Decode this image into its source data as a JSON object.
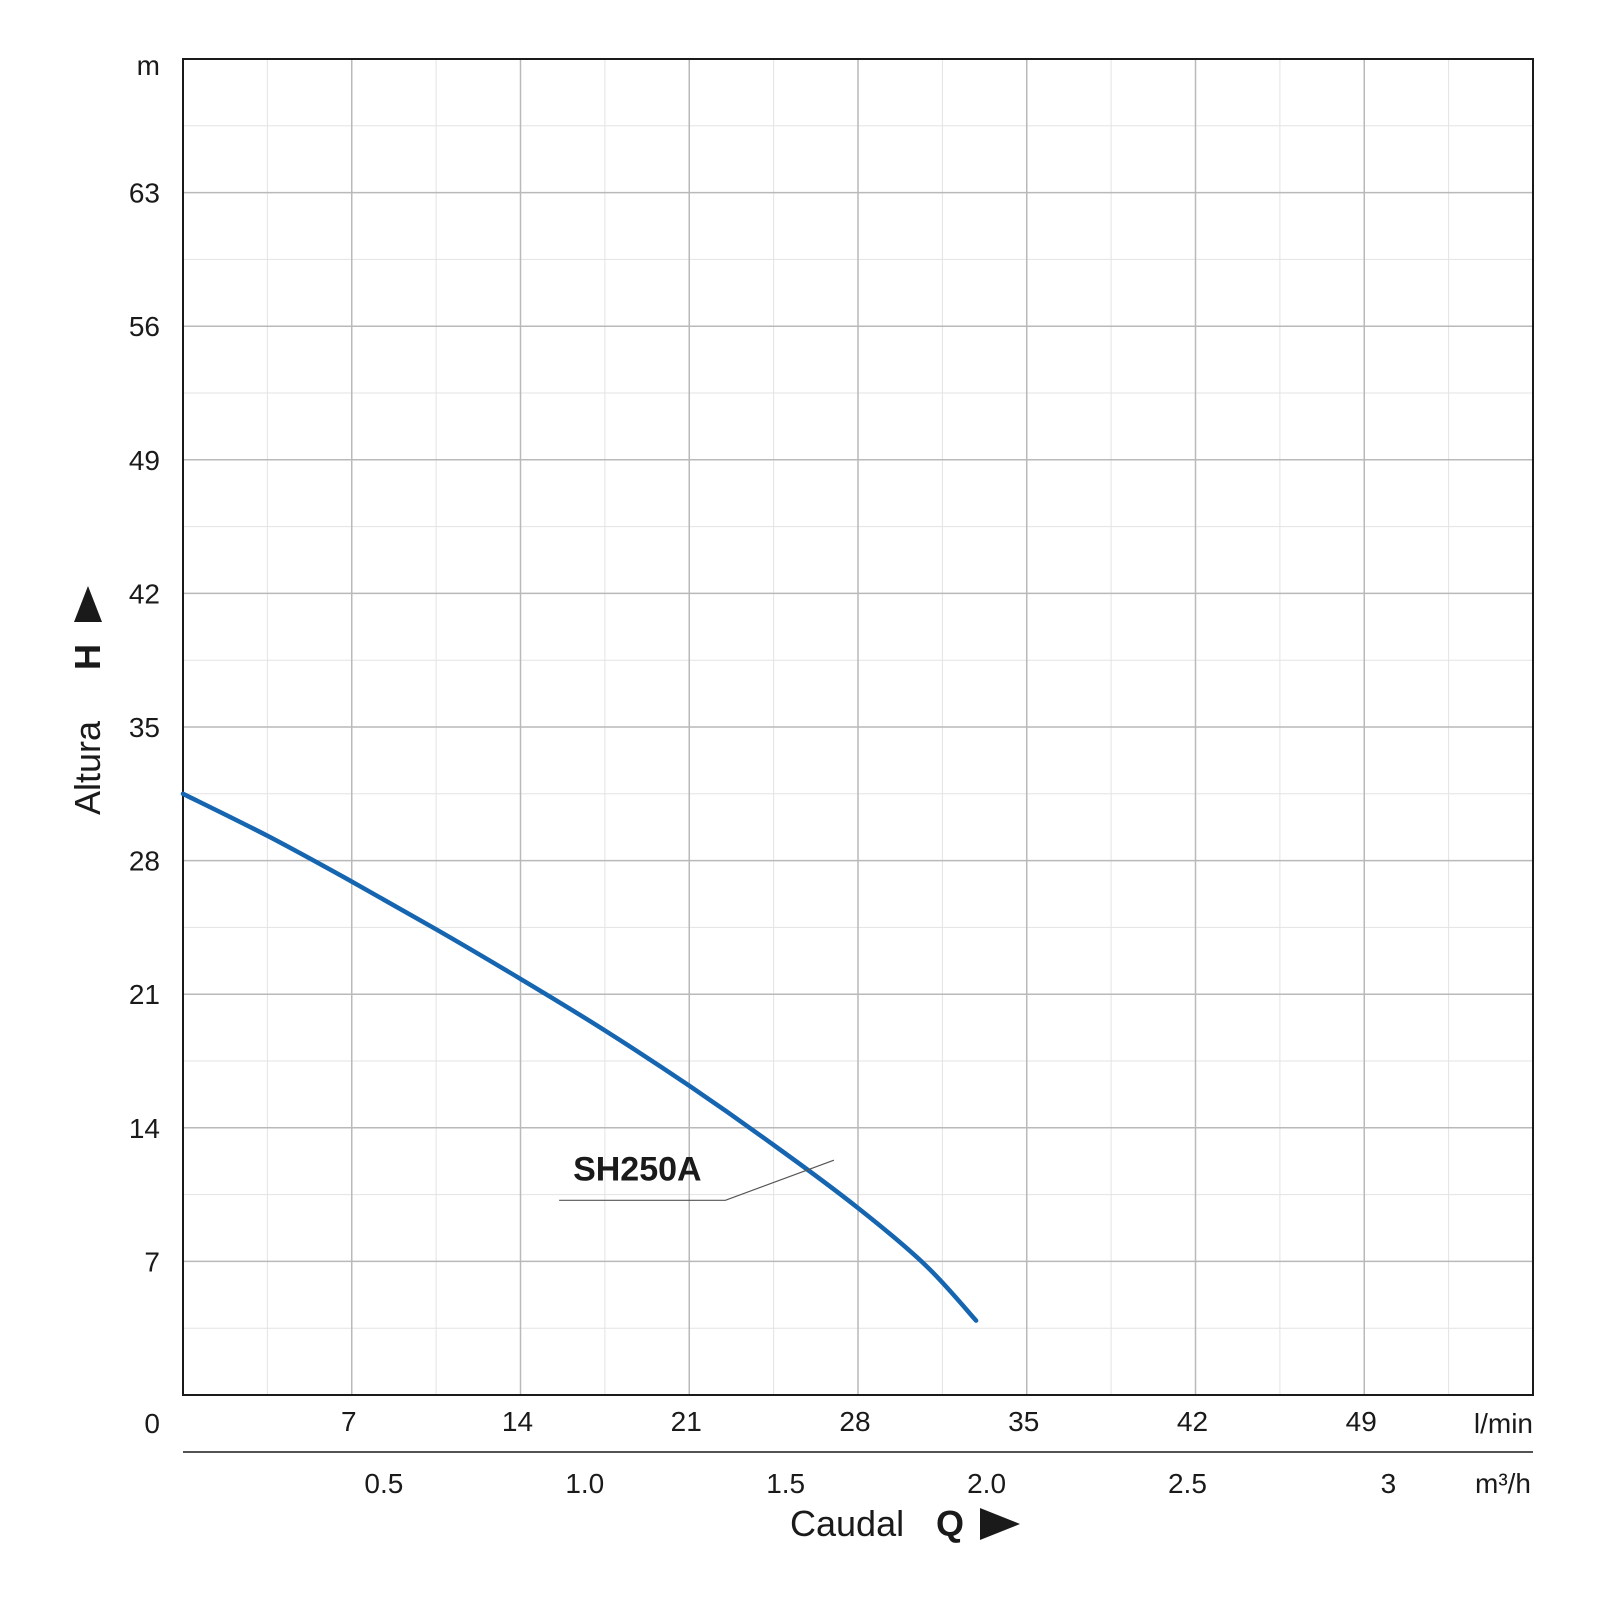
{
  "chart_data": {
    "type": "line",
    "y_axis": {
      "title": "Altura",
      "symbol": "H",
      "unit": "m",
      "ticks": [
        0,
        7,
        14,
        21,
        28,
        35,
        42,
        49,
        56,
        63
      ],
      "tick_labels": [
        "0",
        "7",
        "14",
        "21",
        "28",
        "35",
        "42",
        "49",
        "56",
        "63"
      ],
      "range": [
        0,
        70
      ]
    },
    "x_axis": {
      "title": "Caudal",
      "symbol": "Q",
      "unit_primary": "l/min",
      "range": [
        0,
        56
      ],
      "ticks_primary": [
        7,
        14,
        21,
        28,
        35,
        42,
        49
      ],
      "tick_labels_primary": [
        "7",
        "14",
        "21",
        "28",
        "35",
        "42",
        "49"
      ],
      "unit_secondary": "m³/h",
      "ticks_secondary": [
        0.5,
        1.0,
        1.5,
        2.0,
        2.5,
        3
      ],
      "tick_labels_secondary": [
        "0.5",
        "1.0",
        "1.5",
        "2.0",
        "2.5",
        "3"
      ]
    },
    "grid": true,
    "series": [
      {
        "name": "SH250A",
        "color": "#1565b0",
        "points": [
          [
            0,
            31.5
          ],
          [
            3.5,
            29.3
          ],
          [
            7,
            26.9
          ],
          [
            10.5,
            24.4
          ],
          [
            14,
            21.8
          ],
          [
            17.5,
            19.1
          ],
          [
            21,
            16.2
          ],
          [
            24.5,
            13.1
          ],
          [
            28,
            9.8
          ],
          [
            30.8,
            6.8
          ],
          [
            32.9,
            3.9
          ]
        ]
      }
    ]
  }
}
